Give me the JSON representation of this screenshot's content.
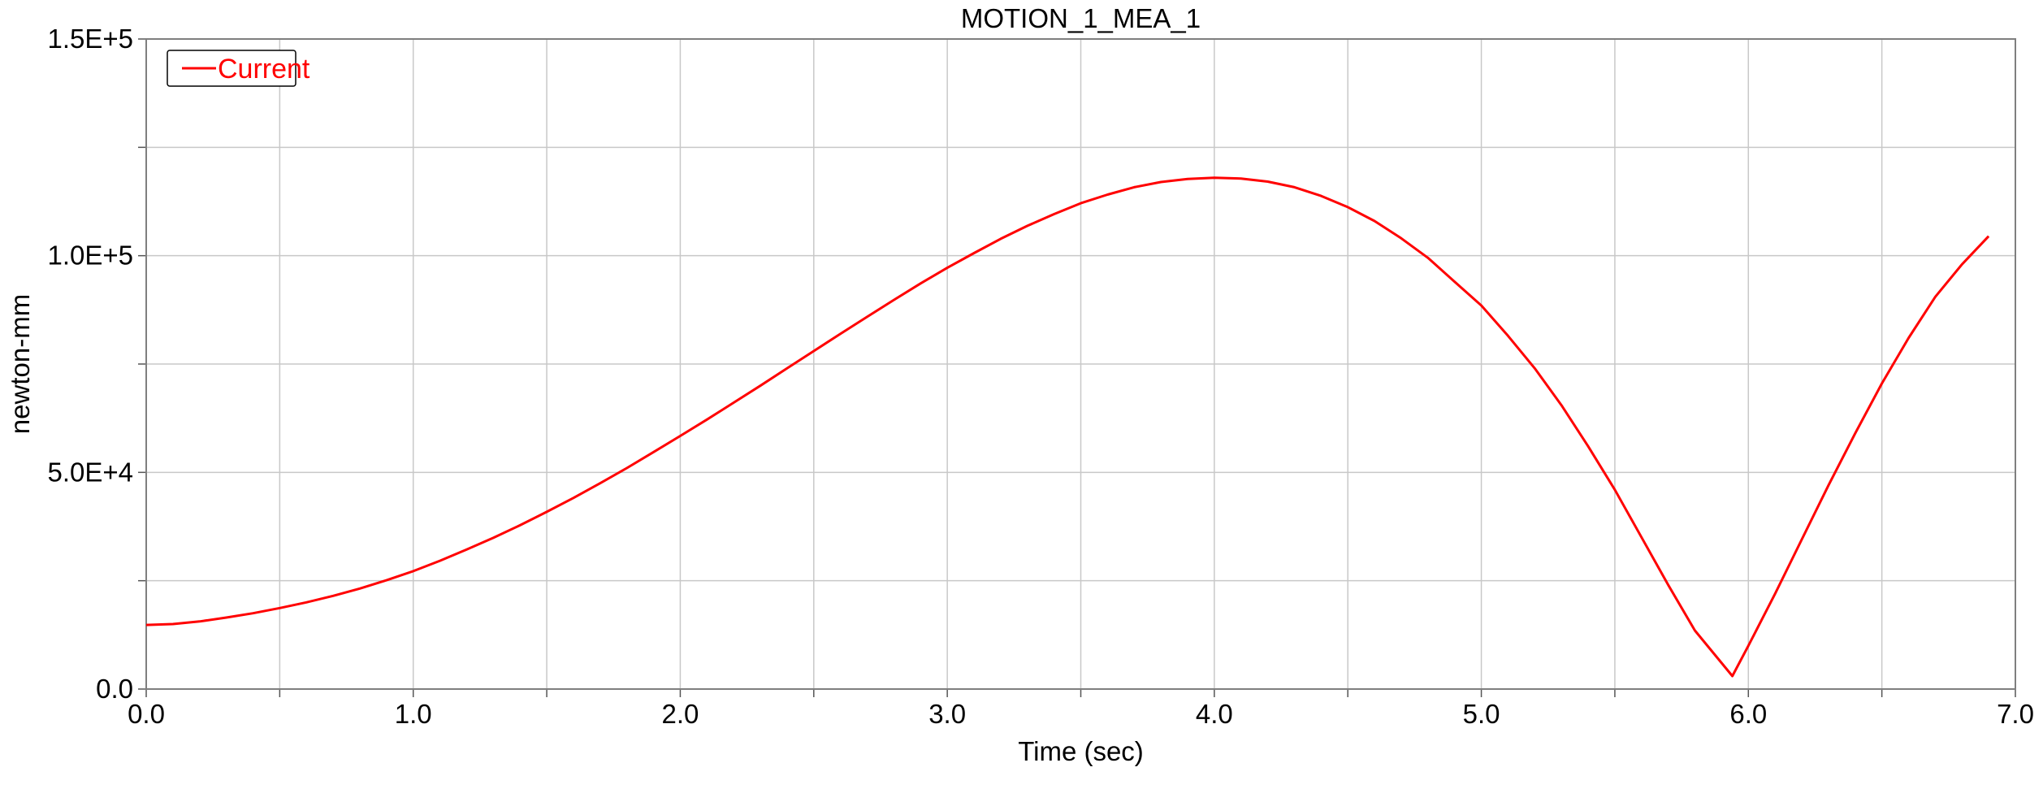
{
  "chart_data": {
    "type": "line",
    "title": "MOTION_1_MEA_1",
    "xlabel": "Time (sec)",
    "ylabel": "newton-mm",
    "xlim": [
      0.0,
      7.0
    ],
    "ylim": [
      0,
      150000
    ],
    "x_ticks": [
      "0.0",
      "1.0",
      "2.0",
      "3.0",
      "4.0",
      "5.0",
      "6.0",
      "7.0"
    ],
    "y_ticks": [
      "0.0",
      "5.0E+4",
      "1.0E+5",
      "1.5E+5"
    ],
    "grid": true,
    "legend_position": "top-left",
    "series": [
      {
        "name": "Current",
        "color": "#ff0000",
        "x": [
          0.0,
          0.1,
          0.2,
          0.3,
          0.4,
          0.5,
          0.6,
          0.7,
          0.8,
          0.9,
          1.0,
          1.1,
          1.2,
          1.3,
          1.4,
          1.5,
          1.6,
          1.7,
          1.8,
          1.9,
          2.0,
          2.1,
          2.2,
          2.3,
          2.4,
          2.5,
          2.6,
          2.7,
          2.8,
          2.9,
          3.0,
          3.1,
          3.2,
          3.3,
          3.4,
          3.5,
          3.6,
          3.7,
          3.8,
          3.9,
          4.0,
          4.1,
          4.2,
          4.3,
          4.4,
          4.5,
          4.6,
          4.7,
          4.8,
          4.9,
          5.0,
          5.1,
          5.2,
          5.3,
          5.4,
          5.5,
          5.6,
          5.7,
          5.8,
          5.94,
          6.0,
          6.1,
          6.2,
          6.3,
          6.4,
          6.5,
          6.6,
          6.7,
          6.8,
          6.9
        ],
        "y": [
          14800,
          15000,
          15600,
          16500,
          17500,
          18700,
          20000,
          21500,
          23200,
          25100,
          27200,
          29600,
          32200,
          34900,
          37800,
          40900,
          44100,
          47500,
          51000,
          54700,
          58400,
          62200,
          66100,
          70000,
          74000,
          78000,
          82000,
          85900,
          89800,
          93600,
          97200,
          100600,
          103900,
          106900,
          109600,
          112100,
          114100,
          115800,
          117000,
          117700,
          118000,
          117800,
          117100,
          115800,
          113800,
          111200,
          108000,
          104000,
          99500,
          94000,
          88500,
          81500,
          74000,
          65500,
          56000,
          46000,
          35000,
          24000,
          13500,
          3000,
          10000,
          22000,
          34500,
          47000,
          59000,
          70500,
          81000,
          90500,
          98000,
          104500
        ]
      }
    ]
  }
}
